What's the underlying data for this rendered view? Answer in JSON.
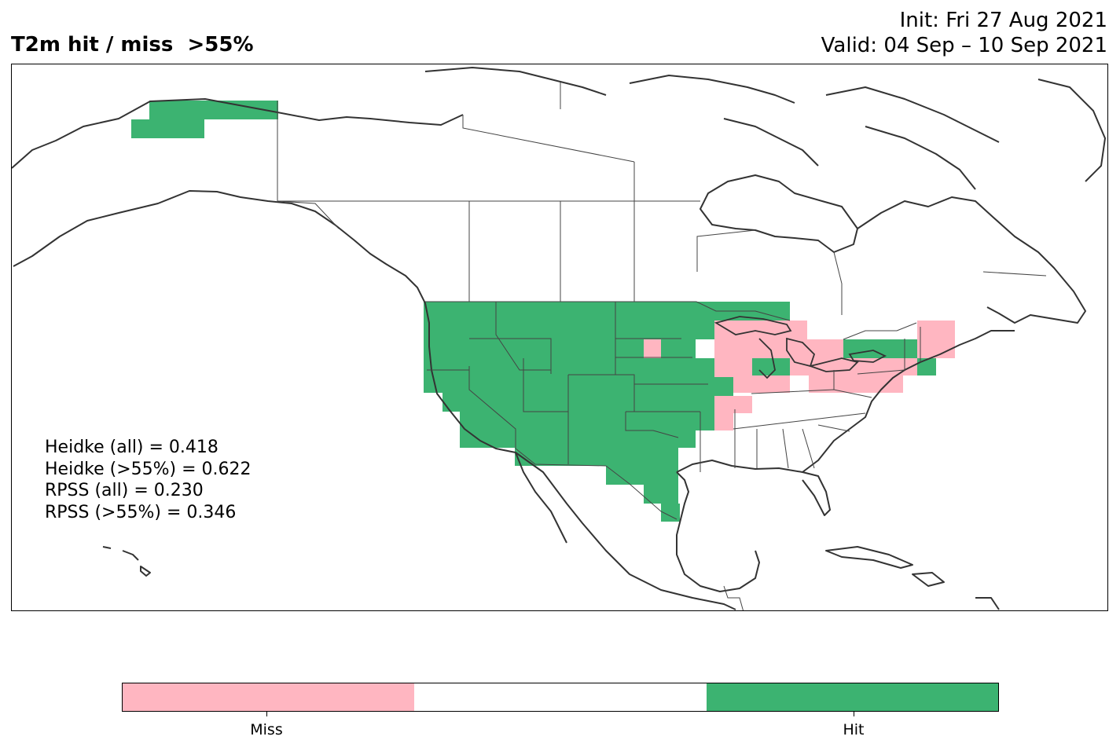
{
  "header": {
    "title": "T2m hit / miss  >55%",
    "init": "Init: Fri 27 Aug 2021",
    "valid": "Valid: 04 Sep – 10 Sep 2021"
  },
  "scores": {
    "heidke_all": "Heidke (all) = 0.418",
    "heidke_55": "Heidke (>55%) = 0.622",
    "rpss_all": "RPSS (all) = 0.230",
    "rpss_55": "RPSS (>55%) = 0.346"
  },
  "legend": {
    "miss_label": "Miss",
    "hit_label": "Hit",
    "miss_color": "#ffb6c1",
    "neutral_color": "#ffffff",
    "hit_color": "#3cb371"
  },
  "colors": {
    "coast": "#333333",
    "border": "#444444"
  }
}
